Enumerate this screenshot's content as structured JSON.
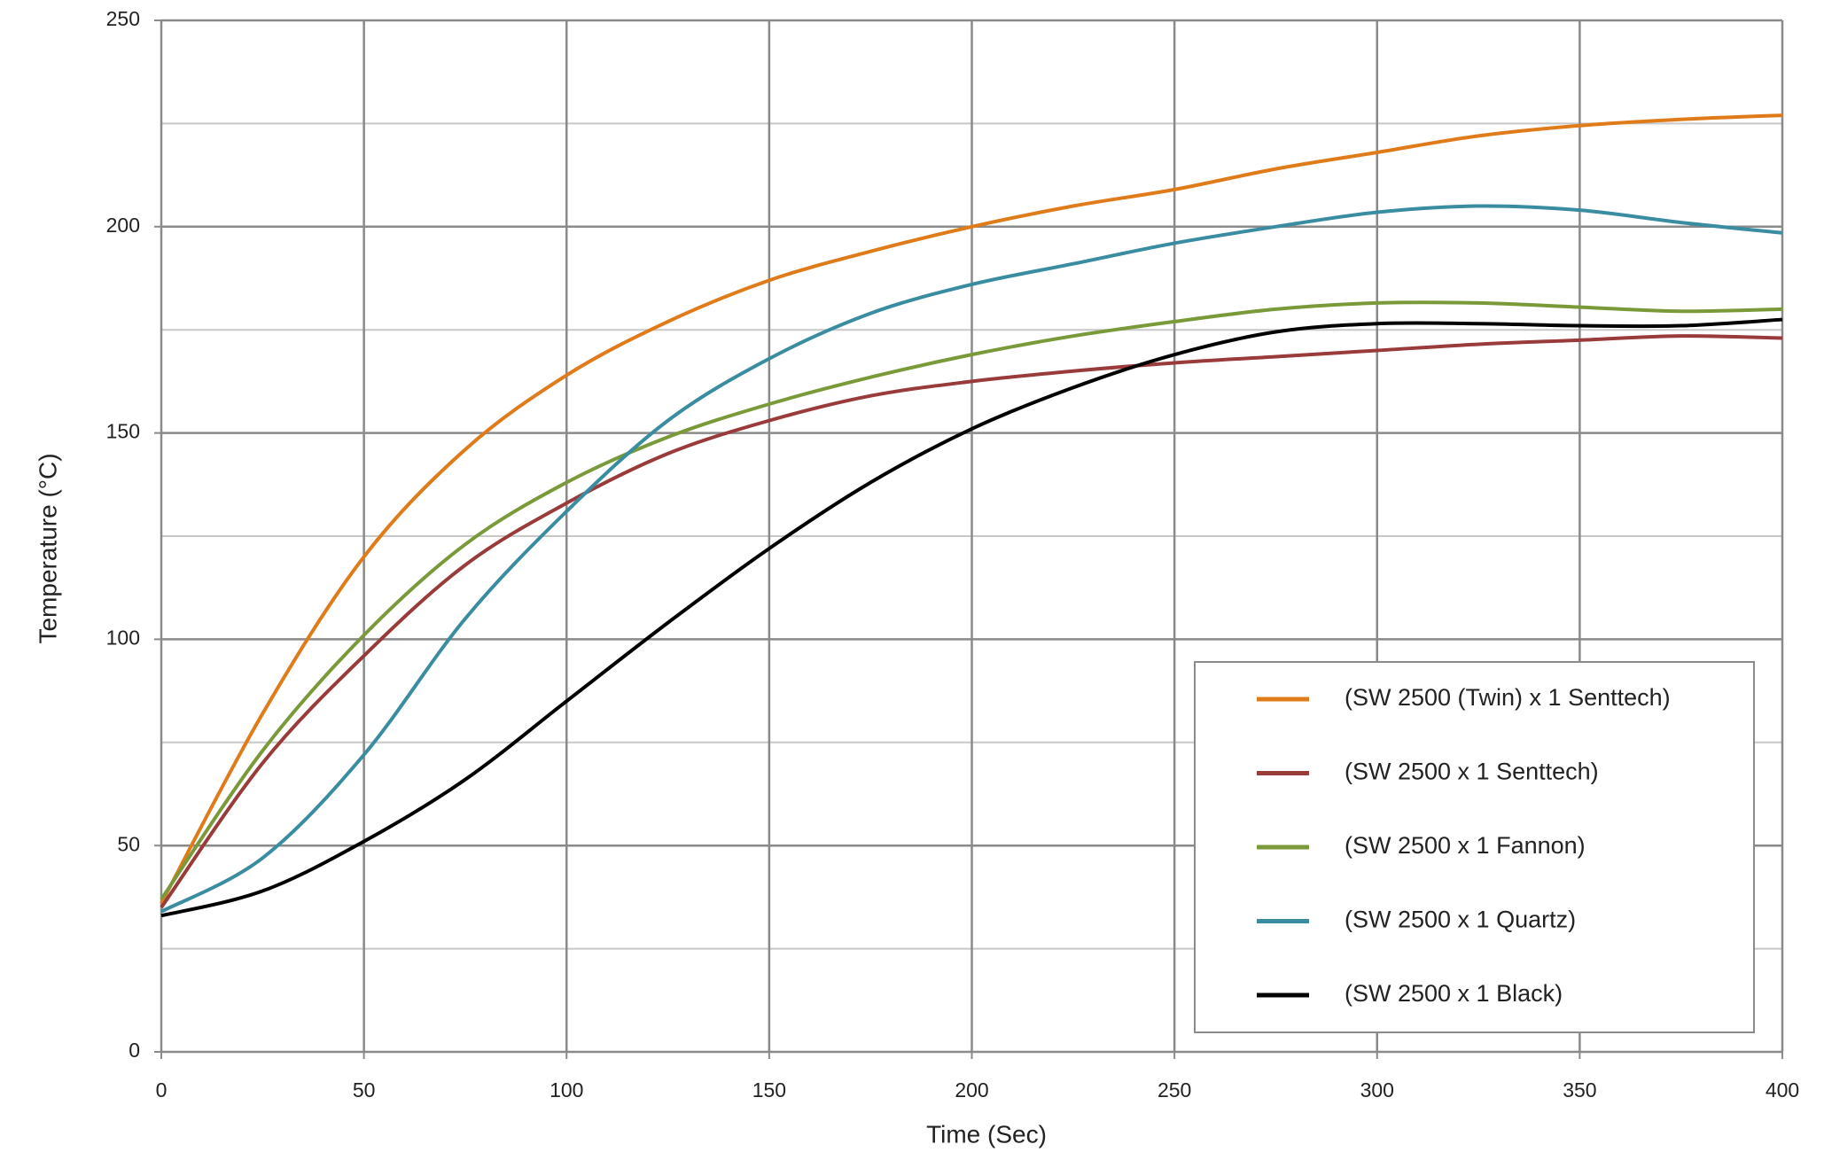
{
  "chart_data": {
    "type": "line",
    "x_label": "Time (Sec)",
    "y_label": "Temperature (°C)",
    "x": [
      0,
      25,
      50,
      75,
      100,
      125,
      150,
      175,
      200,
      225,
      250,
      275,
      300,
      325,
      350,
      375,
      400
    ],
    "series": [
      {
        "name": "(SW 2500 (Twin) x 1 Senttech)",
        "color": "#e07b1a",
        "values": [
          36,
          82,
          120,
          146,
          164,
          177,
          187,
          194,
          200,
          205,
          209,
          214,
          218,
          222,
          224.5,
          226,
          227
        ]
      },
      {
        "name": "(SW 2500 x 1 Senttech)",
        "color": "#9a3b3b",
        "values": [
          35,
          70,
          96,
          118,
          133,
          145,
          153,
          159,
          162.5,
          165,
          167,
          168.5,
          170,
          171.5,
          172.5,
          173.5,
          173
        ]
      },
      {
        "name": "(SW 2500 x 1 Fannon)",
        "color": "#7a9a3a",
        "values": [
          37,
          73,
          101,
          123,
          138,
          149,
          157,
          163.5,
          169,
          173.5,
          177,
          180,
          181.5,
          181.5,
          180.5,
          179.5,
          180
        ]
      },
      {
        "name": "(SW 2500 x 1 Quartz)",
        "color": "#3a8ca0",
        "values": [
          34,
          47,
          72,
          105,
          131,
          153,
          168,
          179,
          186,
          191,
          196,
          200,
          203.5,
          205,
          204,
          201,
          198.5
        ]
      },
      {
        "name": "(SW 2500 x 1 Black)",
        "color": "#000000",
        "values": [
          33,
          39,
          51,
          66,
          85,
          104,
          122,
          138,
          151,
          161,
          169,
          174.5,
          176.5,
          176.5,
          176,
          176,
          177.5
        ]
      }
    ],
    "xlim": [
      0,
      400
    ],
    "xticks": [
      0,
      50,
      100,
      150,
      200,
      250,
      300,
      350,
      400
    ],
    "ylim": [
      0,
      250
    ],
    "yticks": [
      0,
      50,
      100,
      150,
      200,
      250
    ],
    "y_minor_gridlines": [
      25,
      75,
      125,
      175,
      225
    ],
    "grid": true,
    "legend": "lower right"
  }
}
